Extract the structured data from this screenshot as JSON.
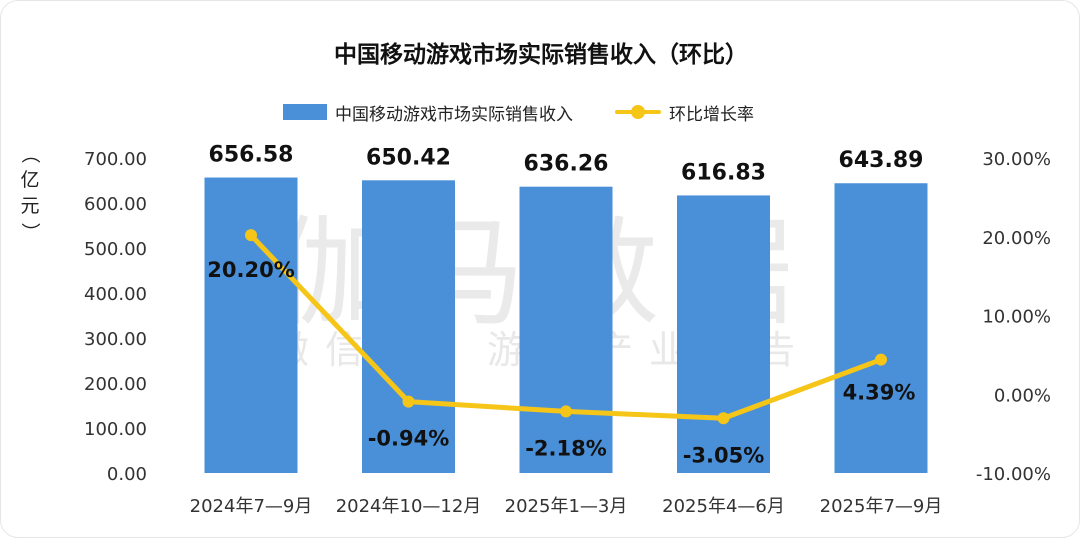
{
  "chart_data": {
    "type": "bar",
    "title": "中国移动游戏市场实际销售收入（环比）",
    "ylabel": "（亿元）",
    "categories": [
      "2024年7—9月",
      "2024年10—12月",
      "2025年1—3月",
      "2025年4—6月",
      "2025年7—9月"
    ],
    "series": [
      {
        "name": "中国移动游戏市场实际销售收入",
        "type": "bar",
        "axis": "left",
        "values": [
          656.58,
          650.42,
          636.26,
          616.83,
          643.89
        ],
        "labels": [
          "656.58",
          "650.42",
          "636.26",
          "616.83",
          "643.89"
        ],
        "color": "#4a90d9"
      },
      {
        "name": "环比增长率",
        "type": "line",
        "axis": "right",
        "values": [
          20.2,
          -0.94,
          -2.18,
          -3.05,
          4.39
        ],
        "labels": [
          "20.20%",
          "-0.94%",
          "-2.18%",
          "-3.05%",
          "4.39%"
        ],
        "color": "#f5c518"
      }
    ],
    "y_left": {
      "ylim": [
        0,
        700
      ],
      "ticks": [
        "0.00",
        "100.00",
        "200.00",
        "300.00",
        "400.00",
        "500.00",
        "600.00",
        "700.00"
      ]
    },
    "y_right": {
      "ylim": [
        -10,
        30
      ],
      "ticks": [
        "-10.00%",
        "0.00%",
        "10.00%",
        "20.00%",
        "30.00%"
      ]
    },
    "legend": "top-center",
    "grid": false
  },
  "watermark": {
    "main": "伽马数据",
    "sub": "微信号：游戏产业报告"
  }
}
